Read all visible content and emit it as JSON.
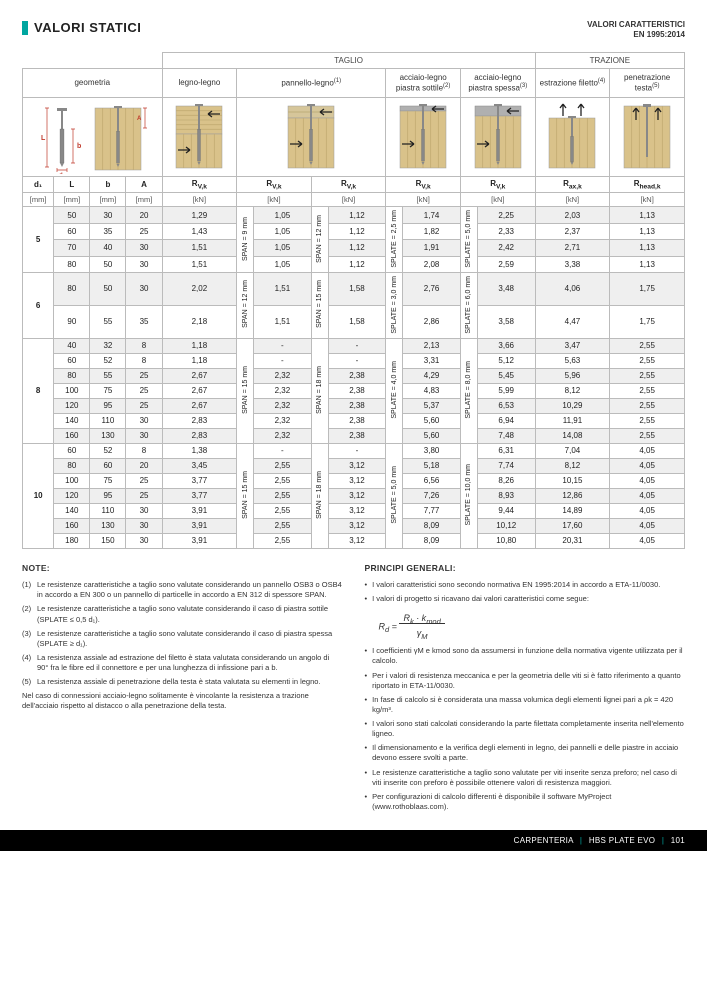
{
  "header": {
    "title": "VALORI STATICI",
    "subtitle_l1": "VALORI CARATTERISTICI",
    "subtitle_l2": "EN 1995:2014"
  },
  "sections": {
    "taglio": "TAGLIO",
    "trazione": "TRAZIONE"
  },
  "cols": {
    "geometria": "geometria",
    "legno": "legno-legno",
    "pannello": "pannello-legno",
    "pannello_sup": "(1)",
    "acciaio_sottile": "acciaio-legno piastra sottile",
    "acciaio_sottile_sup": "(2)",
    "acciaio_spessa": "acciaio-legno piastra spessa",
    "acciaio_spessa_sup": "(3)",
    "estrazione": "estrazione filetto",
    "estrazione_sup": "(4)",
    "penetrazione": "penetrazione testa",
    "penetrazione_sup": "(5)"
  },
  "sym": {
    "d1": "d₁",
    "L": "L",
    "b": "b",
    "A": "A",
    "Rvk": "R",
    "Rvk_sub": "V,k",
    "Raxk": "R",
    "Raxk_sub": "ax,k",
    "Rheadk": "R",
    "Rheadk_sub": "head,k"
  },
  "units": {
    "mm": "[mm]",
    "kN": "[kN]"
  },
  "spanLabels": {
    "g5_pan": "SPAN = 9 mm",
    "g5_pan2": "SPAN = 12 mm",
    "g5_plate_s": "SPLATE = 2,5 mm",
    "g5_plate_t": "SPLATE = 5,0 mm",
    "g6_pan": "SPAN = 12 mm",
    "g6_pan2": "SPAN = 15 mm",
    "g6_plate_s": "SPLATE = 3,0 mm",
    "g6_plate_t": "SPLATE = 6,0 mm",
    "g8_pan": "SPAN = 15 mm",
    "g8_pan2": "SPAN = 18 mm",
    "g8_plate_s": "SPLATE = 4,0 mm",
    "g8_plate_t": "SPLATE = 8,0 mm",
    "g10_pan": "SPAN = 15 mm",
    "g10_pan2": "SPAN = 18 mm",
    "g10_plate_s": "SPLATE = 5,0 mm",
    "g10_plate_t": "SPLATE = 10,0 mm"
  },
  "groups": [
    {
      "d1": "5",
      "rows": [
        {
          "L": "50",
          "b": "30",
          "A": "20",
          "r1": "1,29",
          "p1": "1,05",
          "p2": "1,12",
          "as": "1,74",
          "at": "2,25",
          "ax": "2,03",
          "hd": "1,13"
        },
        {
          "L": "60",
          "b": "35",
          "A": "25",
          "r1": "1,43",
          "p1": "1,05",
          "p2": "1,12",
          "as": "1,82",
          "at": "2,33",
          "ax": "2,37",
          "hd": "1,13"
        },
        {
          "L": "70",
          "b": "40",
          "A": "30",
          "r1": "1,51",
          "p1": "1,05",
          "p2": "1,12",
          "as": "1,91",
          "at": "2,42",
          "ax": "2,71",
          "hd": "1,13"
        },
        {
          "L": "80",
          "b": "50",
          "A": "30",
          "r1": "1,51",
          "p1": "1,05",
          "p2": "1,12",
          "as": "2,08",
          "at": "2,59",
          "ax": "3,38",
          "hd": "1,13"
        }
      ]
    },
    {
      "d1": "6",
      "rows": [
        {
          "L": "80",
          "b": "50",
          "A": "30",
          "r1": "2,02",
          "p1": "1,51",
          "p2": "1,58",
          "as": "2,76",
          "at": "3,48",
          "ax": "4,06",
          "hd": "1,75"
        },
        {
          "L": "90",
          "b": "55",
          "A": "35",
          "r1": "2,18",
          "p1": "1,51",
          "p2": "1,58",
          "as": "2,86",
          "at": "3,58",
          "ax": "4,47",
          "hd": "1,75"
        }
      ]
    },
    {
      "d1": "8",
      "rows": [
        {
          "L": "40",
          "b": "32",
          "A": "8",
          "r1": "1,18",
          "p1": "-",
          "p2": "-",
          "as": "2,13",
          "at": "3,66",
          "ax": "3,47",
          "hd": "2,55"
        },
        {
          "L": "60",
          "b": "52",
          "A": "8",
          "r1": "1,18",
          "p1": "-",
          "p2": "-",
          "as": "3,31",
          "at": "5,12",
          "ax": "5,63",
          "hd": "2,55"
        },
        {
          "L": "80",
          "b": "55",
          "A": "25",
          "r1": "2,67",
          "p1": "2,32",
          "p2": "2,38",
          "as": "4,29",
          "at": "5,45",
          "ax": "5,96",
          "hd": "2,55"
        },
        {
          "L": "100",
          "b": "75",
          "A": "25",
          "r1": "2,67",
          "p1": "2,32",
          "p2": "2,38",
          "as": "4,83",
          "at": "5,99",
          "ax": "8,12",
          "hd": "2,55"
        },
        {
          "L": "120",
          "b": "95",
          "A": "25",
          "r1": "2,67",
          "p1": "2,32",
          "p2": "2,38",
          "as": "5,37",
          "at": "6,53",
          "ax": "10,29",
          "hd": "2,55"
        },
        {
          "L": "140",
          "b": "110",
          "A": "30",
          "r1": "2,83",
          "p1": "2,32",
          "p2": "2,38",
          "as": "5,60",
          "at": "6,94",
          "ax": "11,91",
          "hd": "2,55"
        },
        {
          "L": "160",
          "b": "130",
          "A": "30",
          "r1": "2,83",
          "p1": "2,32",
          "p2": "2,38",
          "as": "5,60",
          "at": "7,48",
          "ax": "14,08",
          "hd": "2,55"
        }
      ]
    },
    {
      "d1": "10",
      "rows": [
        {
          "L": "60",
          "b": "52",
          "A": "8",
          "r1": "1,38",
          "p1": "-",
          "p2": "-",
          "as": "3,80",
          "at": "6,31",
          "ax": "7,04",
          "hd": "4,05"
        },
        {
          "L": "80",
          "b": "60",
          "A": "20",
          "r1": "3,45",
          "p1": "2,55",
          "p2": "3,12",
          "as": "5,18",
          "at": "7,74",
          "ax": "8,12",
          "hd": "4,05"
        },
        {
          "L": "100",
          "b": "75",
          "A": "25",
          "r1": "3,77",
          "p1": "2,55",
          "p2": "3,12",
          "as": "6,56",
          "at": "8,26",
          "ax": "10,15",
          "hd": "4,05"
        },
        {
          "L": "120",
          "b": "95",
          "A": "25",
          "r1": "3,77",
          "p1": "2,55",
          "p2": "3,12",
          "as": "7,26",
          "at": "8,93",
          "ax": "12,86",
          "hd": "4,05"
        },
        {
          "L": "140",
          "b": "110",
          "A": "30",
          "r1": "3,91",
          "p1": "2,55",
          "p2": "3,12",
          "as": "7,77",
          "at": "9,44",
          "ax": "14,89",
          "hd": "4,05"
        },
        {
          "L": "160",
          "b": "130",
          "A": "30",
          "r1": "3,91",
          "p1": "2,55",
          "p2": "3,12",
          "as": "8,09",
          "at": "10,12",
          "ax": "17,60",
          "hd": "4,05"
        },
        {
          "L": "180",
          "b": "150",
          "A": "30",
          "r1": "3,91",
          "p1": "2,55",
          "p2": "3,12",
          "as": "8,09",
          "at": "10,80",
          "ax": "20,31",
          "hd": "4,05"
        }
      ]
    }
  ],
  "notes": {
    "head": "NOTE:",
    "items": [
      {
        "n": "(1)",
        "t": "Le resistenze caratteristiche a taglio sono valutate considerando un pannello OSB3 o OSB4 in accordo a EN 300 o un pannello di particelle in accordo a EN 312 di spessore SPAN."
      },
      {
        "n": "(2)",
        "t": "Le resistenze caratteristiche a taglio sono valutate considerando il caso di piastra sottile (SPLATE ≤ 0,5 d₁)."
      },
      {
        "n": "(3)",
        "t": "Le resistenze caratteristiche a taglio sono valutate considerando il caso di piastra spessa (SPLATE ≥ d₁)."
      },
      {
        "n": "(4)",
        "t": "La resistenza assiale ad estrazione del filetto è stata valutata considerando un angolo di 90° fra le fibre ed il connettore e per una lunghezza di infissione pari a b."
      },
      {
        "n": "(5)",
        "t": "La resistenza assiale di penetrazione della testa è stata valutata su elementi in legno."
      }
    ],
    "tail": "Nel caso di connessioni acciaio-legno solitamente è vincolante la resistenza a trazione dell'acciaio rispetto al distacco o alla penetrazione della testa."
  },
  "principi": {
    "head": "PRINCIPI GENERALI:",
    "items": [
      "I valori caratteristici sono secondo normativa EN 1995:2014 in accordo a ETA-11/0030.",
      "I valori di progetto si ricavano dai valori caratteristici come segue:",
      "I coefficienti γM e kmod sono da assumersi in funzione della normativa vigente utilizzata per il calcolo.",
      "Per i valori di resistenza meccanica e per la geometria delle viti si è fatto riferimento a quanto riportato in ETA-11/0030.",
      "In fase di calcolo si è considerata una massa volumica degli elementi lignei pari a ρk = 420 kg/m³.",
      "I valori sono stati calcolati considerando la parte filettata completamente inserita nell'elemento ligneo.",
      "Il dimensionamento e la verifica degli elementi in legno, dei pannelli e delle piastre in acciaio devono essere svolti a parte.",
      "Le resistenze caratteristiche a taglio sono valutate per viti inserite senza preforo; nel caso di viti inserite con preforo è possibile ottenere valori di resistenza maggiori.",
      "Per configurazioni di calcolo differenti è disponibile il software MyProject (www.rothoblaas.com)."
    ],
    "formula": "Rd = (Rk · kmod) / γM"
  },
  "footer": {
    "cat": "CARPENTERIA",
    "prod": "HBS PLATE EVO",
    "page": "101"
  },
  "colors": {
    "accent": "#00a6a0",
    "wood": "#d9c28a",
    "wood_d": "#c2ab73",
    "screw": "#888",
    "arrow": "#222",
    "plate": "#b0b0b0",
    "annot": "#c0392b"
  }
}
